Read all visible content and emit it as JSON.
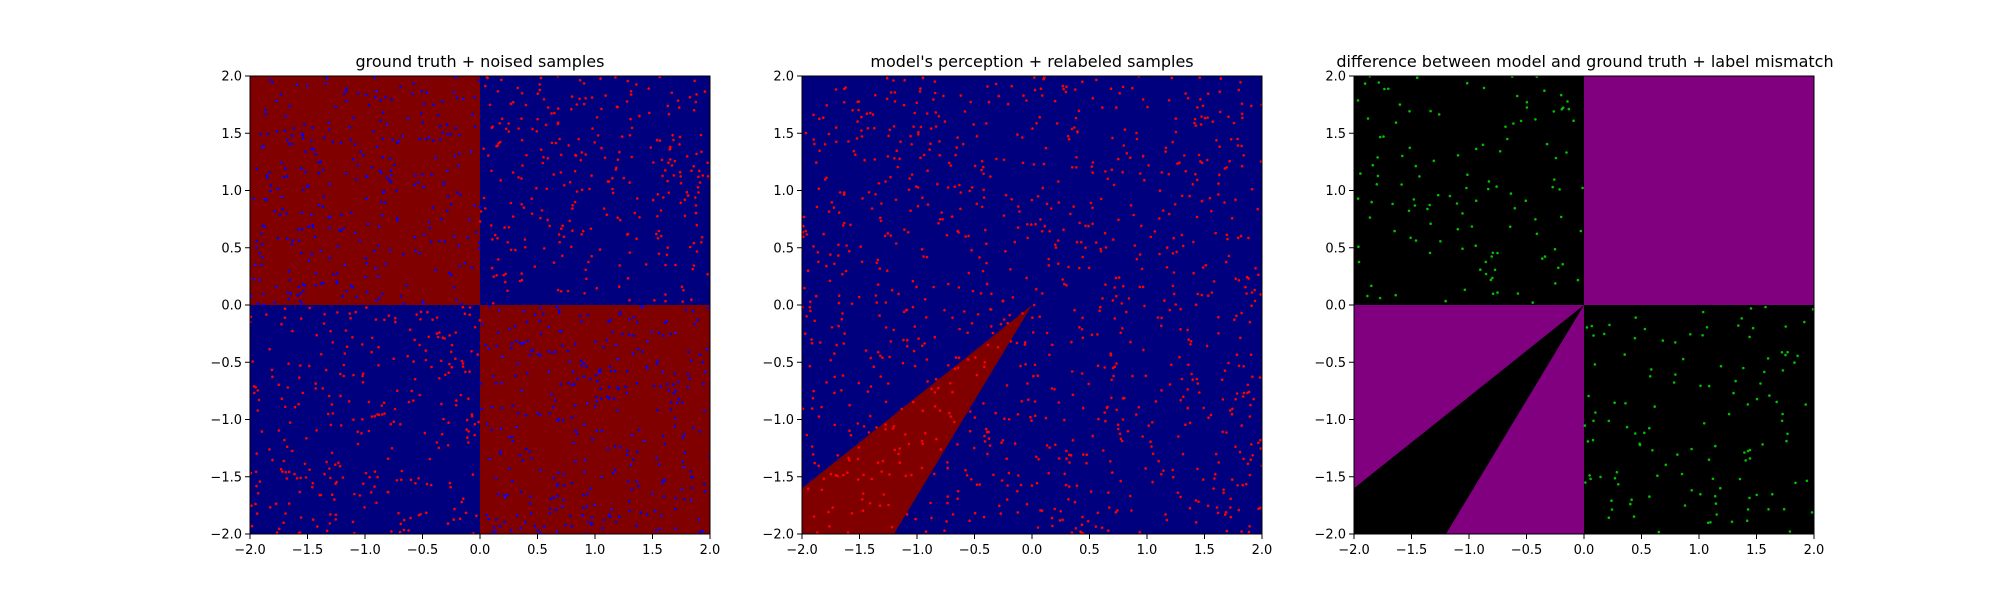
{
  "colors": {
    "dark_red": "#800000",
    "dark_blue": "#00007f",
    "purple": "#800080",
    "black": "#000000",
    "red_point": "#ff0000",
    "blue_point": "#0000ff",
    "green_point": "#00c000"
  },
  "chart_data": [
    {
      "type": "scatter",
      "title": "ground truth + noised samples",
      "xlim": [
        -2.0,
        2.0
      ],
      "ylim": [
        -2.0,
        2.0
      ],
      "xticks": [
        "−2.0",
        "−1.5",
        "−1.0",
        "−0.5",
        "0.0",
        "0.5",
        "1.0",
        "1.5",
        "2.0"
      ],
      "yticks": [
        "−2.0",
        "−1.5",
        "−1.0",
        "−0.5",
        "0.0",
        "0.5",
        "1.0",
        "1.5",
        "2.0"
      ],
      "background": "checkerboard: x<0,y>0 and x>0,y<0 dark red; x>0,y>0 and x<0,y<0 dark blue",
      "points": "dense uniform scatter over the plane; blue points on red regions, red points on blue regions",
      "point_count_visible": 1200
    },
    {
      "type": "scatter",
      "title": "model's perception + relabeled samples",
      "xlim": [
        -2.0,
        2.0
      ],
      "ylim": [
        -2.0,
        2.0
      ],
      "xticks": [
        "−2.0",
        "−1.5",
        "−1.0",
        "−0.5",
        "0.0",
        "0.5",
        "1.0",
        "1.5",
        "2.0"
      ],
      "yticks": [
        "−2.0",
        "−1.5",
        "−1.0",
        "−0.5",
        "0.0",
        "0.5",
        "1.0",
        "1.5",
        "2.0"
      ],
      "background": "dark blue everywhere except a dark red wedge from the origin to the lower-left",
      "wedge": [
        [
          0.0,
          0.0
        ],
        [
          -2.0,
          -1.6
        ],
        [
          -2.0,
          -2.0
        ],
        [
          -1.2,
          -2.0
        ]
      ],
      "points": "red points across the whole plane",
      "point_count_visible": 1000
    },
    {
      "type": "scatter",
      "title": "difference between model and ground truth + label mismatch",
      "xlim": [
        -2.0,
        2.0
      ],
      "ylim": [
        -2.0,
        2.0
      ],
      "xticks": [
        "−2.0",
        "−1.5",
        "−1.0",
        "−0.5",
        "0.0",
        "0.5",
        "1.0",
        "1.5",
        "2.0"
      ],
      "yticks": [
        "−2.0",
        "−1.5",
        "−1.0",
        "−0.5",
        "0.0",
        "0.5",
        "1.0",
        "1.5",
        "2.0"
      ],
      "background": "upper-left black, upper-right purple, lower-right black, lower-left purple with a black wedge",
      "wedge": [
        [
          0.0,
          0.0
        ],
        [
          -2.0,
          -1.6
        ],
        [
          -2.0,
          -2.0
        ],
        [
          -1.2,
          -2.0
        ]
      ],
      "points": "green points in the upper-left and lower-right quadrants",
      "point_count_visible": 500
    }
  ]
}
